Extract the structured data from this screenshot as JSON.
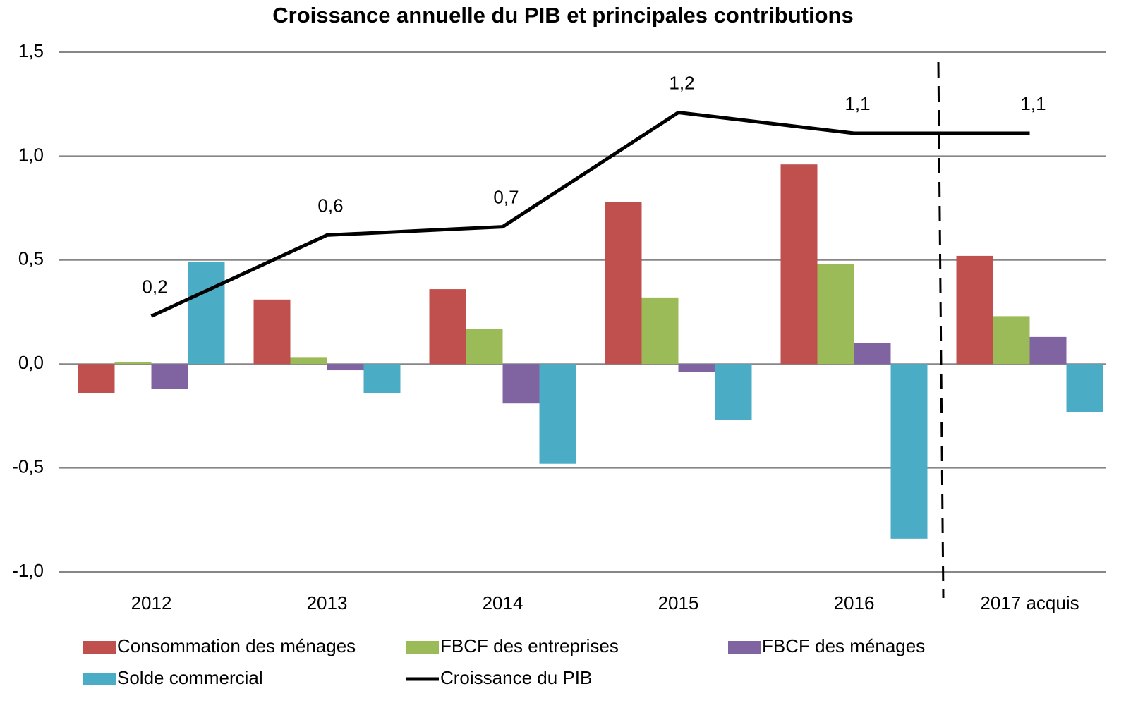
{
  "chart_data": {
    "type": "bar",
    "title": "Croissance annuelle du PIB et principales contributions",
    "categories": [
      "2012",
      "2013",
      "2014",
      "2015",
      "2016",
      "2017 acquis"
    ],
    "series": [
      {
        "name": "Consommation des ménages",
        "color": "#c0504d",
        "values": [
          -0.14,
          0.31,
          0.36,
          0.78,
          0.96,
          0.52
        ]
      },
      {
        "name": "FBCF des entreprises",
        "color": "#9bbb59",
        "values": [
          0.01,
          0.03,
          0.17,
          0.32,
          0.48,
          0.23
        ]
      },
      {
        "name": "FBCF des ménages",
        "color": "#8064a2",
        "values": [
          -0.12,
          -0.03,
          -0.19,
          -0.04,
          0.1,
          0.13
        ]
      },
      {
        "name": "Solde commercial",
        "color": "#4bacc6",
        "values": [
          0.49,
          -0.14,
          -0.48,
          -0.27,
          -0.84,
          -0.23
        ]
      },
      {
        "name": "Croissance du PIB",
        "color": "#000000",
        "type": "line",
        "values": [
          0.23,
          0.62,
          0.66,
          1.21,
          1.11,
          1.11
        ],
        "value_labels": [
          "0,2",
          "0,6",
          "0,7",
          "1,2",
          "1,1",
          "1,1"
        ]
      }
    ],
    "ylim": [
      -1.0,
      1.5
    ],
    "yticks": [
      {
        "value": -1.0,
        "label": "-1,0"
      },
      {
        "value": -0.5,
        "label": "-0,5"
      },
      {
        "value": 0,
        "label": "0,0"
      },
      {
        "value": 0.5,
        "label": "0,5"
      },
      {
        "value": 1.0,
        "label": "1,0"
      },
      {
        "value": 1.5,
        "label": "1,5"
      }
    ],
    "grid": true
  }
}
